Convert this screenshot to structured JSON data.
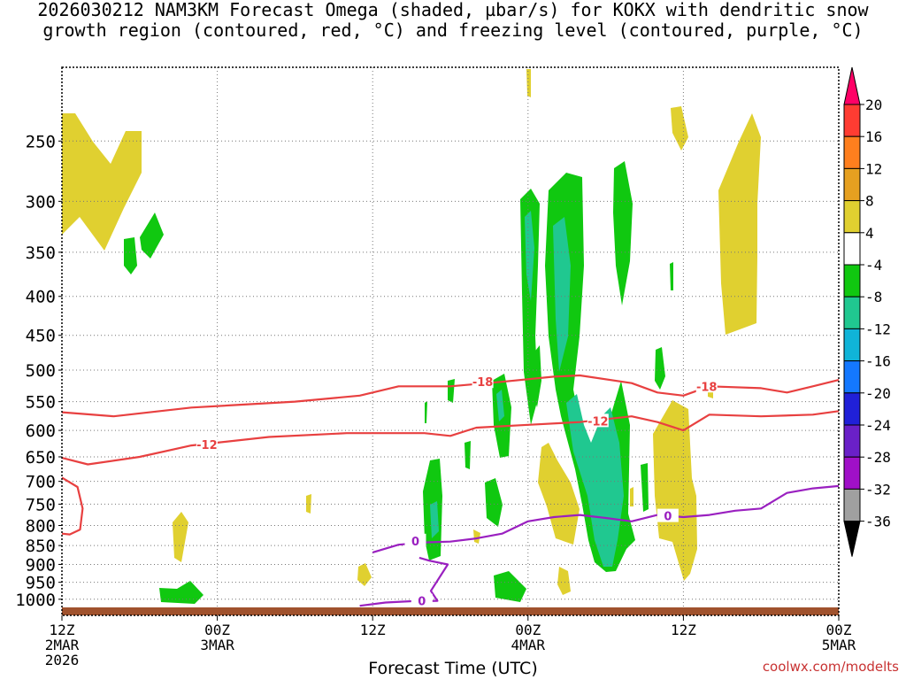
{
  "chart_data": {
    "type": "heatmap",
    "title_line1": "2026030212 NAM3KM Forecast Omega (shaded, µbar/s) for KOKX with dendritic snow",
    "title_line2": "growth region (contoured, red, °C) and freezing level (contoured, purple, °C)",
    "xlabel": "Forecast Time (UTC)",
    "ylabel": "",
    "credit": "coolwx.com/modelts",
    "x_ticks": [
      {
        "h": 0,
        "l1": "12Z",
        "l2": "2MAR",
        "l3": "2026"
      },
      {
        "h": 12,
        "l1": "00Z",
        "l2": "3MAR",
        "l3": ""
      },
      {
        "h": 24,
        "l1": "12Z",
        "l2": "",
        "l3": ""
      },
      {
        "h": 36,
        "l1": "00Z",
        "l2": "4MAR",
        "l3": ""
      },
      {
        "h": 48,
        "l1": "12Z",
        "l2": "",
        "l3": ""
      },
      {
        "h": 60,
        "l1": "00Z",
        "l2": "5MAR",
        "l3": ""
      }
    ],
    "xlim_hours": [
      0,
      60
    ],
    "y_axis": "pressure (hPa), log scale, inverted",
    "ylim": [
      1050,
      200
    ],
    "y_ticks": [
      250,
      300,
      350,
      400,
      450,
      500,
      550,
      600,
      650,
      700,
      750,
      800,
      850,
      900,
      950,
      1000
    ],
    "grid": "dotted",
    "colorbar": {
      "labels": [
        "20",
        "16",
        "12",
        "8",
        "4",
        "-4",
        "-8",
        "-12",
        "-16",
        "-20",
        "-24",
        "-28",
        "-32",
        "-36"
      ],
      "colors": [
        "#ff0066",
        "#ff3c32",
        "#ff7f1e",
        "#e6a020",
        "#e0d030",
        "#ffffff",
        "#10c810",
        "#20c890",
        "#10b4d8",
        "#1478ff",
        "#2020d8",
        "#6a20c8",
        "#a010c8",
        "#a0a0a0",
        "#000000"
      ]
    },
    "contours": [
      {
        "name": "-18",
        "color": "#e84040",
        "points": [
          [
            0,
            568
          ],
          [
            4,
            575
          ],
          [
            10,
            560
          ],
          [
            18,
            550
          ],
          [
            23,
            540
          ],
          [
            26,
            525
          ],
          [
            30,
            525
          ],
          [
            34,
            518
          ],
          [
            38,
            510
          ],
          [
            40,
            508
          ],
          [
            44,
            520
          ],
          [
            46,
            535
          ],
          [
            48,
            540
          ],
          [
            50,
            525
          ],
          [
            54,
            528
          ],
          [
            56,
            535
          ],
          [
            58,
            525
          ],
          [
            60,
            515
          ]
        ]
      },
      {
        "name": "-12",
        "color": "#e84040",
        "points": [
          [
            0,
            652
          ],
          [
            2,
            665
          ],
          [
            6,
            650
          ],
          [
            10,
            628
          ],
          [
            16,
            612
          ],
          [
            22,
            605
          ],
          [
            28,
            605
          ],
          [
            30,
            610
          ],
          [
            32,
            595
          ],
          [
            36,
            590
          ],
          [
            40,
            585
          ],
          [
            44,
            575
          ],
          [
            46,
            585
          ],
          [
            48,
            600
          ],
          [
            50,
            572
          ],
          [
            54,
            575
          ],
          [
            58,
            572
          ],
          [
            60,
            566
          ]
        ]
      },
      {
        "name": "-12 low",
        "color": "#e84040",
        "points": [
          [
            0,
            692
          ],
          [
            1.2,
            712
          ],
          [
            1.6,
            760
          ],
          [
            1.4,
            810
          ],
          [
            0.6,
            822
          ],
          [
            0,
            820
          ]
        ]
      },
      {
        "name": "0",
        "color": "#9a20c0",
        "points": [
          [
            24,
            868
          ],
          [
            26,
            848
          ],
          [
            28,
            842
          ],
          [
            30,
            840
          ],
          [
            32,
            832
          ],
          [
            34,
            820
          ],
          [
            36,
            790
          ],
          [
            38,
            780
          ],
          [
            40,
            775
          ],
          [
            42,
            782
          ],
          [
            44,
            790
          ],
          [
            46,
            775
          ],
          [
            48,
            780
          ],
          [
            50,
            775
          ],
          [
            52,
            765
          ],
          [
            54,
            760
          ],
          [
            56,
            725
          ],
          [
            58,
            715
          ],
          [
            60,
            710
          ]
        ]
      },
      {
        "name": "0 low",
        "color": "#9a20c0",
        "points": [
          [
            23,
            1020
          ],
          [
            25,
            1010
          ],
          [
            27,
            1006
          ],
          [
            29,
            1005
          ],
          [
            28.5,
            975
          ],
          [
            29.8,
            900
          ],
          [
            28.4,
            890
          ],
          [
            27.6,
            882
          ]
        ]
      }
    ]
  }
}
